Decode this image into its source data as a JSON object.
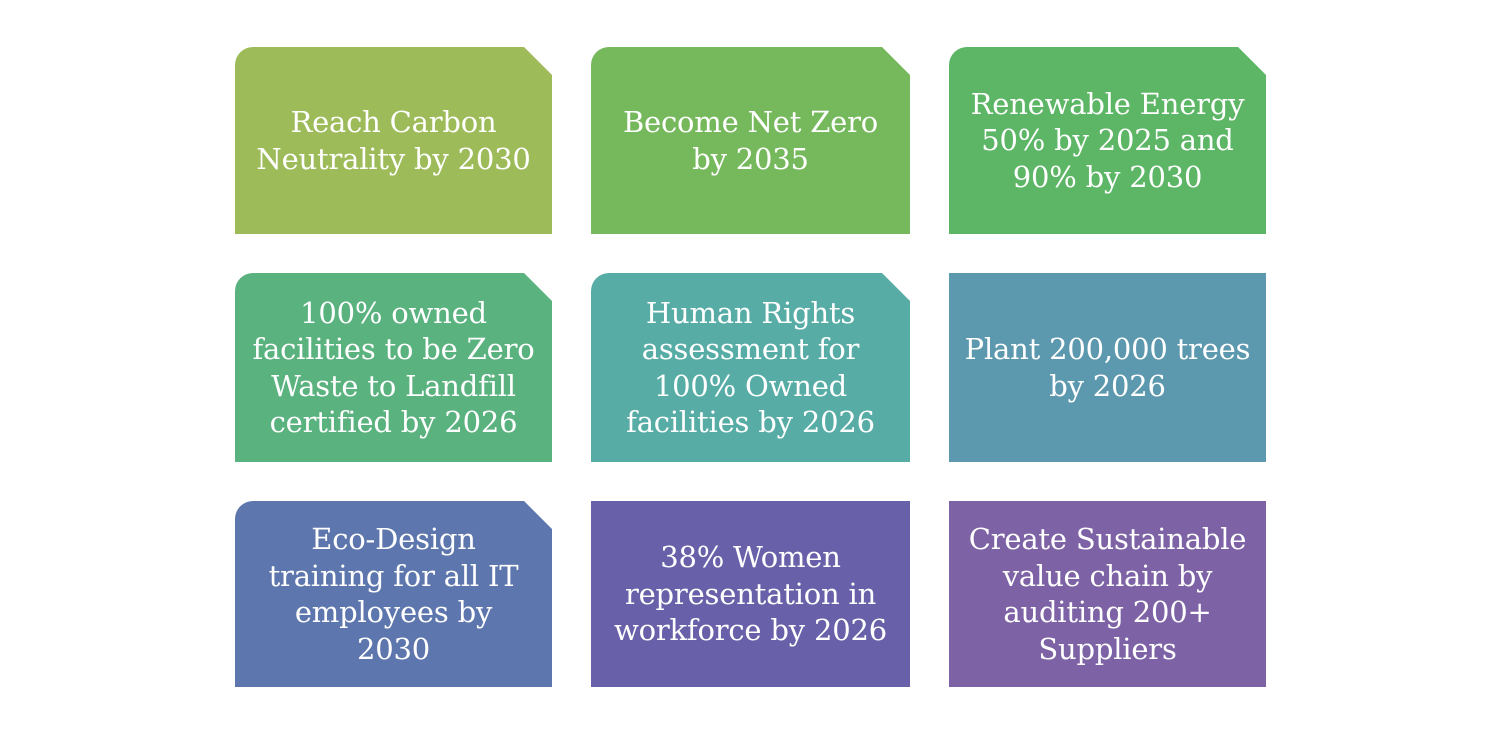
{
  "goals": [
    {
      "text": "Reach Carbon\nNeutrality by 2030",
      "color": "#9dbb58"
    },
    {
      "text": "Become Net Zero\nby 2035",
      "color": "#76b95c"
    },
    {
      "text": "Renewable Energy\n50% by 2025 and\n90% by 2030",
      "color": "#5cb665"
    },
    {
      "text": "100% owned\nfacilities to be Zero\nWaste to Landfill\ncertified by 2026",
      "color": "#5ab27f"
    },
    {
      "text": "Human Rights\nassessment for\n100% Owned\nfacilities by 2026",
      "color": "#57ada6"
    },
    {
      "text": "Plant 200,000 trees\nby 2026",
      "color": "#5c98ae"
    },
    {
      "text": "Eco-Design\ntraining for all IT\nemployees by\n2030",
      "color": "#5d76ad"
    },
    {
      "text": "38% Women\nrepresentation in\nworkforce by 2026",
      "color": "#6861a9"
    },
    {
      "text": "Create Sustainable\nvalue chain by\nauditing 200+\nSuppliers",
      "color": "#7d63a6"
    }
  ]
}
